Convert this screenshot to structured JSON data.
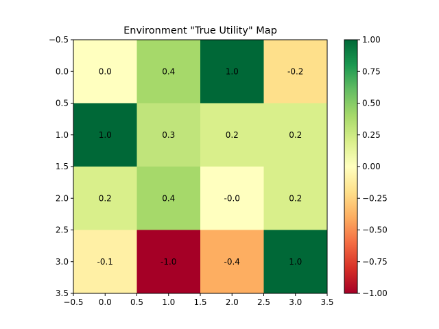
{
  "chart_data": {
    "type": "heatmap",
    "title": "Environment \"True Utility\" Map",
    "xlabel": "",
    "ylabel": "",
    "rows": 4,
    "cols": 4,
    "values": [
      [
        0.0,
        0.4,
        1.0,
        -0.2
      ],
      [
        1.0,
        0.3,
        0.2,
        0.2
      ],
      [
        0.2,
        0.4,
        -0.0,
        0.2
      ],
      [
        -0.1,
        -1.0,
        -0.4,
        1.0
      ]
    ],
    "cell_labels": [
      [
        "0.0",
        "0.4",
        "1.0",
        "-0.2"
      ],
      [
        "1.0",
        "0.3",
        "0.2",
        "0.2"
      ],
      [
        "0.2",
        "0.4",
        "-0.0",
        "0.2"
      ],
      [
        "-0.1",
        "-1.0",
        "-0.4",
        "1.0"
      ]
    ],
    "xlim": [
      -0.5,
      3.5
    ],
    "ylim": [
      -0.5,
      3.5
    ],
    "y_inverted": true,
    "x_ticks": [
      "−0.5",
      "0.0",
      "0.5",
      "1.0",
      "1.5",
      "2.0",
      "2.5",
      "3.0",
      "3.5"
    ],
    "y_ticks": [
      "−0.5",
      "0.0",
      "0.5",
      "1.0",
      "1.5",
      "2.0",
      "2.5",
      "3.0",
      "3.5"
    ],
    "colormap": "RdYlGn",
    "vmin": -1.0,
    "vmax": 1.0,
    "colorbar_ticks": [
      "1.00",
      "0.75",
      "0.50",
      "0.25",
      "0.00",
      "−0.25",
      "−0.50",
      "−0.75",
      "−1.00"
    ],
    "colorbar_tick_values": [
      1.0,
      0.75,
      0.5,
      0.25,
      0.0,
      -0.25,
      -0.5,
      -0.75,
      -1.0
    ],
    "grid": false,
    "legend": "colorbar-right"
  }
}
